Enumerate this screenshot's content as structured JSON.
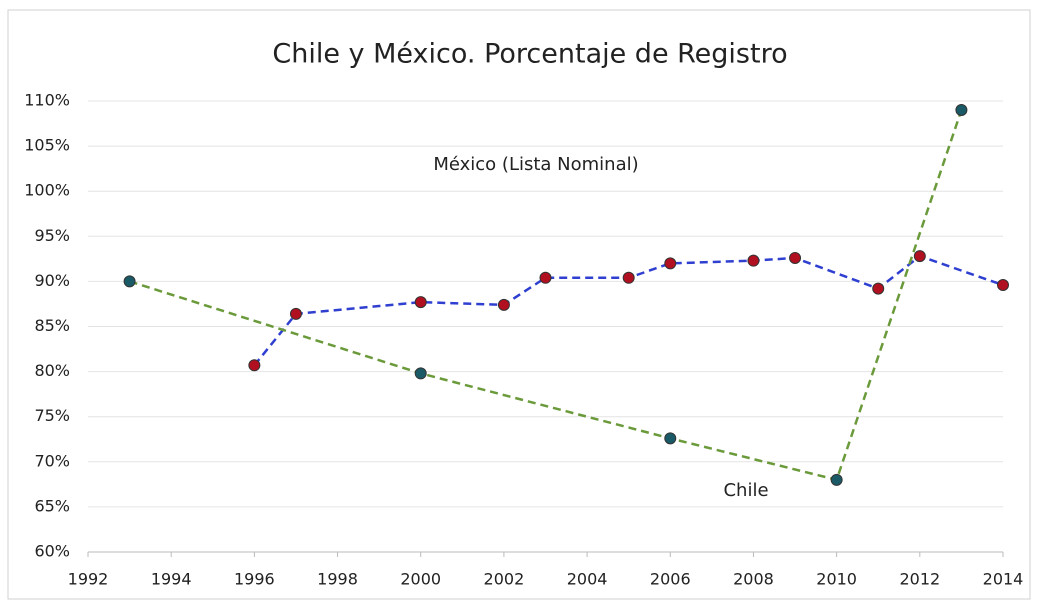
{
  "chart_data": {
    "type": "line",
    "title": "Chile y México. Porcentaje de Registro",
    "xlim": [
      1992,
      2014
    ],
    "xticks": [
      1992,
      1994,
      1996,
      1998,
      2000,
      2002,
      2004,
      2006,
      2008,
      2010,
      2012,
      2014
    ],
    "ylim": [
      60,
      110
    ],
    "yticks": [
      {
        "value": 60,
        "label": "60%"
      },
      {
        "value": 65,
        "label": "65%"
      },
      {
        "value": 70,
        "label": "70%"
      },
      {
        "value": 75,
        "label": "75%"
      },
      {
        "value": 80,
        "label": "80%"
      },
      {
        "value": 85,
        "label": "85%"
      },
      {
        "value": 90,
        "label": "90%"
      },
      {
        "value": 95,
        "label": "95%"
      },
      {
        "value": 100,
        "label": "100%"
      },
      {
        "value": 105,
        "label": "105%"
      },
      {
        "value": 110,
        "label": "110%"
      }
    ],
    "grid": true,
    "series": [
      {
        "name": "México (Lista Nominal)",
        "color": "#2f3fd0",
        "marker_color": "#b01020",
        "x": [
          1996,
          1997,
          2000,
          2002,
          2003,
          2005,
          2006,
          2008,
          2009,
          2011,
          2012,
          2014
        ],
        "values": [
          80.7,
          86.4,
          87.7,
          87.4,
          90.4,
          90.4,
          92.0,
          92.3,
          92.6,
          89.2,
          92.8,
          89.6
        ]
      },
      {
        "name": "Chile",
        "color": "#6a9a3a",
        "marker_color": "#1a5a66",
        "x": [
          1993,
          2000,
          2006,
          2010,
          2013
        ],
        "values": [
          90.0,
          79.8,
          72.6,
          68.0,
          109.0
        ]
      }
    ]
  }
}
